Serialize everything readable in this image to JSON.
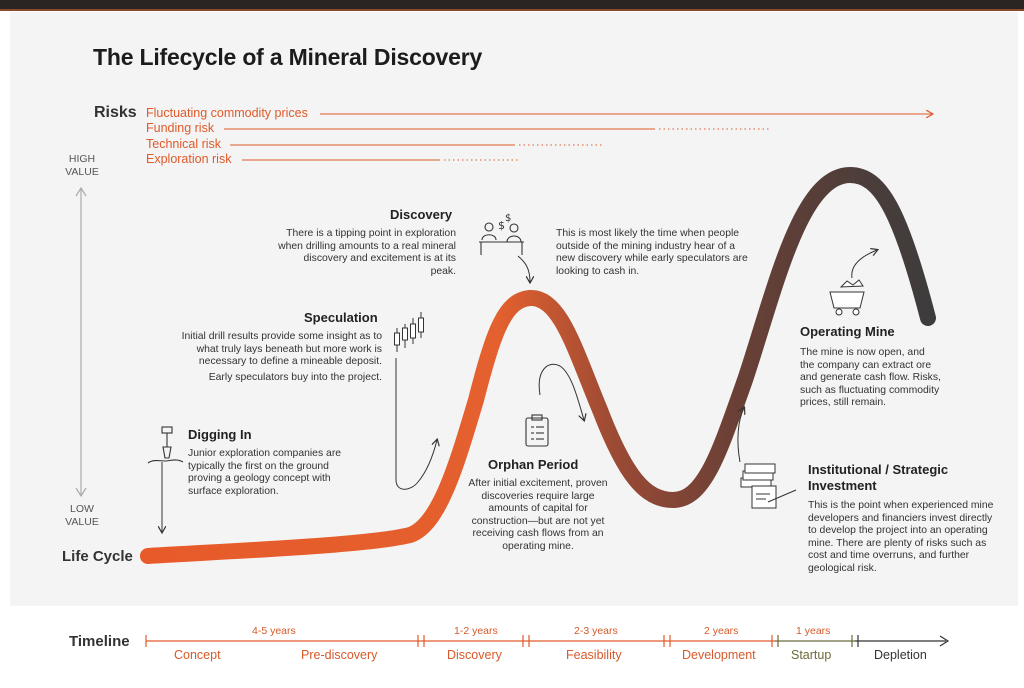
{
  "title": "The Lifecycle of a Mineral Discovery",
  "risks": {
    "label": "Risks",
    "items": [
      "Fluctuating commodity prices",
      "Funding risk",
      "Technical risk",
      "Exploration risk"
    ]
  },
  "value_axis": {
    "high_line1": "HIGH",
    "high_line2": "VALUE",
    "low_line1": "LOW",
    "low_line2": "VALUE"
  },
  "lifecycle_label": "Life Cycle",
  "stages": {
    "discovery": {
      "title": "Discovery",
      "text": "There is a tipping point in exploration when drilling amounts to a real mineral discovery and excitement is at its peak.",
      "aside": "This is most likely the time when people outside of the mining industry hear of a new discovery while early speculators are looking to cash in."
    },
    "speculation": {
      "title": "Speculation",
      "text": "Initial drill results provide some insight as to what truly lays beneath but more work is necessary to define a mineable deposit.",
      "text2": "Early speculators buy into the project."
    },
    "digging": {
      "title": "Digging In",
      "text": "Junior exploration companies are typically the first on the ground proving a geology concept with surface exploration."
    },
    "orphan": {
      "title": "Orphan Period",
      "text": "After initial excitement, proven discoveries require large amounts of capital for construction—but are not yet receiving cash flows from an operating mine."
    },
    "operating": {
      "title": "Operating Mine",
      "text": "The mine is now open, and the company can extract ore and generate cash flow. Risks, such as fluctuating commodity prices, still remain."
    },
    "institutional": {
      "title": "Institutional / Strategic Investment",
      "text": "This is the point when experienced mine developers and financiers invest directly to develop the project into an operating mine. There are plenty of risks such as cost and time overruns, and further geological risk."
    }
  },
  "timeline": {
    "label": "Timeline",
    "durations": [
      "4-5 years",
      "1-2 years",
      "2-3 years",
      "2 years",
      "1 years"
    ],
    "phases": [
      "Concept",
      "Pre-discovery",
      "Discovery",
      "Feasibility",
      "Development",
      "Startup",
      "Depletion"
    ]
  },
  "colors": {
    "accent": "#e05a2a",
    "dark": "#3a3a3a",
    "panel": "#f4f4f4"
  },
  "icons": [
    "drill-icon",
    "candlestick-chart-icon",
    "people-money-icon",
    "clipboard-icon",
    "cash-contract-icon",
    "mine-cart-icon"
  ]
}
